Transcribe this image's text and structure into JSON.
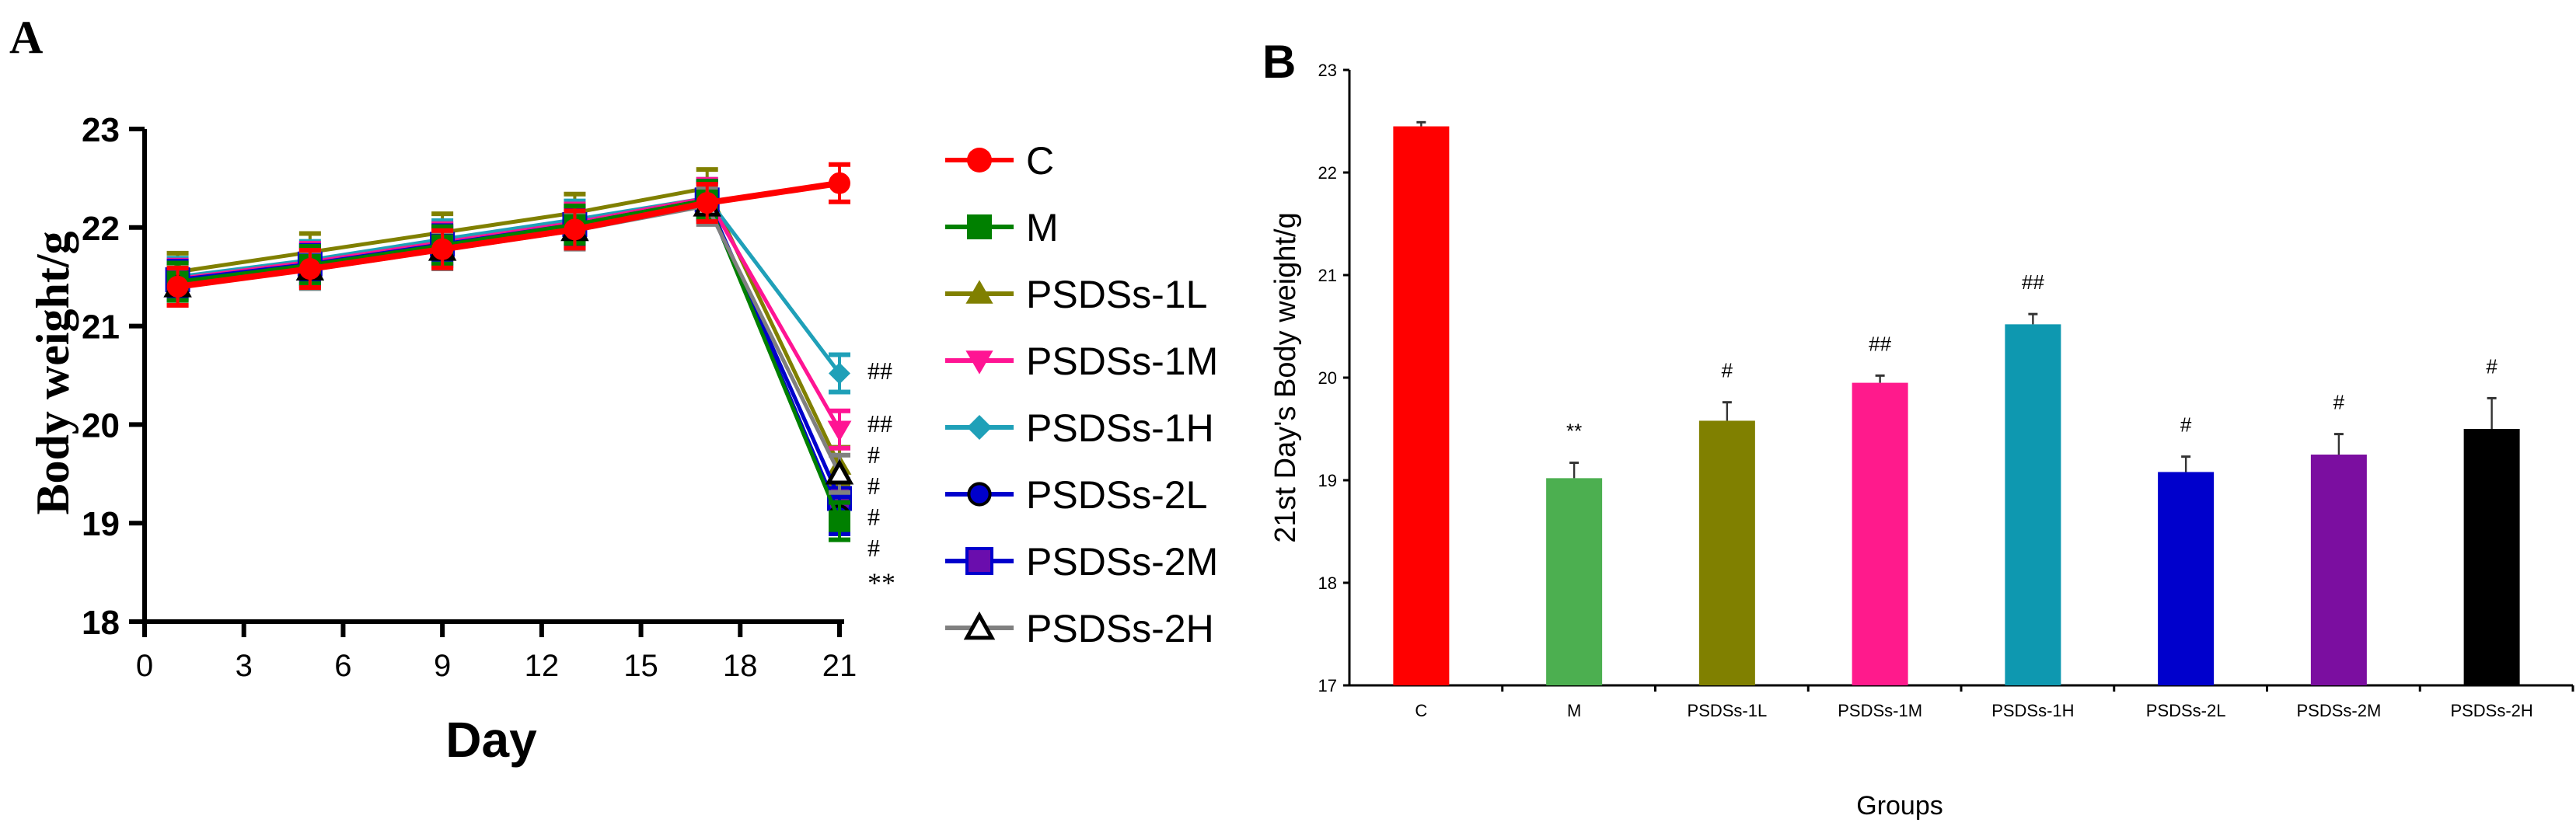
{
  "chart_data": [
    {
      "panel": "A",
      "type": "line",
      "xlabel": "Day",
      "ylabel": "Body weight/g",
      "xlim": [
        0,
        21
      ],
      "ylim": [
        18,
        23
      ],
      "xticks": [
        "0",
        "3",
        "6",
        "9",
        "12",
        "15",
        "18",
        "21"
      ],
      "yticks": [
        "18",
        "19",
        "20",
        "21",
        "22",
        "23"
      ],
      "x": [
        1,
        5,
        9,
        13,
        17,
        21
      ],
      "legend_position": "right",
      "series": [
        {
          "name": "C",
          "color": "#ff0000",
          "marker": "circle",
          "values": [
            21.4,
            21.58,
            21.78,
            21.98,
            22.25,
            22.45
          ],
          "annotation": ""
        },
        {
          "name": "M",
          "color": "#008000",
          "marker": "square",
          "values": [
            21.45,
            21.62,
            21.82,
            22.03,
            22.28,
            19.02
          ],
          "annotation": "**"
        },
        {
          "name": "PSDSs-1L",
          "color": "#808000",
          "marker": "triangle-up",
          "values": [
            21.55,
            21.75,
            21.95,
            22.15,
            22.4,
            19.58
          ],
          "annotation": "#"
        },
        {
          "name": "PSDSs-1M",
          "color": "#ff1493",
          "marker": "triangle-down",
          "values": [
            21.48,
            21.65,
            21.85,
            22.05,
            22.3,
            19.95
          ],
          "annotation": "##"
        },
        {
          "name": "PSDSs-1H",
          "color": "#1fa0b8",
          "marker": "diamond",
          "values": [
            21.5,
            21.67,
            21.88,
            22.08,
            22.3,
            20.52
          ],
          "annotation": "##"
        },
        {
          "name": "PSDSs-2L",
          "color": "#0000cc",
          "marker": "circle-outline",
          "values": [
            21.45,
            21.6,
            21.8,
            22.0,
            22.27,
            19.08
          ],
          "annotation": "#"
        },
        {
          "name": "PSDSs-2M",
          "color": "#0000cc",
          "marker": "square-purple",
          "values": [
            21.47,
            21.63,
            21.83,
            22.03,
            22.28,
            19.25
          ],
          "annotation": "#"
        },
        {
          "name": "PSDSs-2H",
          "color": "#808080",
          "marker": "triangle-outline",
          "values": [
            21.4,
            21.57,
            21.77,
            21.97,
            22.22,
            19.5
          ],
          "annotation": "#"
        }
      ]
    },
    {
      "panel": "B",
      "type": "bar",
      "xlabel": "Groups",
      "ylabel": "21st Day's  Body weight/g",
      "ylim": [
        17,
        23
      ],
      "yticks": [
        "17",
        "18",
        "19",
        "20",
        "21",
        "22",
        "23"
      ],
      "categories": [
        "C",
        "M",
        "PSDSs-1L",
        "PSDSs-1M",
        "PSDSs-1H",
        "PSDSs-2L",
        "PSDSs-2M",
        "PSDSs-2H"
      ],
      "values": [
        22.45,
        19.02,
        19.58,
        19.95,
        20.52,
        19.08,
        19.25,
        19.5
      ],
      "errors": [
        0.04,
        0.15,
        0.18,
        0.07,
        0.1,
        0.15,
        0.2,
        0.3
      ],
      "annotations": [
        "",
        "**",
        "#",
        "##",
        "##",
        "#",
        "#",
        "#"
      ],
      "colors": [
        "#ff0000",
        "#4caf50",
        "#808000",
        "#ff1a8c",
        "#0e98b0",
        "#0000cc",
        "#7b0ea0",
        "#000000"
      ]
    }
  ]
}
